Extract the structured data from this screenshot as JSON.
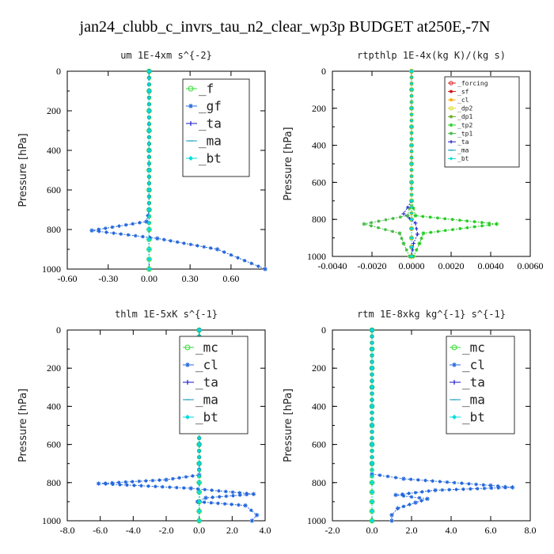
{
  "figure": {
    "title": "jan24_clubb_c_invrs_tau_n2_clear_wp3p  BUDGET at250E,-7N"
  },
  "chart_data": [
    {
      "type": "line",
      "title": "um   1E-4xm  s^{-2}",
      "ylabel": "Pressure [hPa]",
      "xlim": [
        -0.6,
        0.85
      ],
      "ylim": [
        1000,
        0
      ],
      "xticks": [
        -0.6,
        -0.3,
        0.0,
        0.3,
        0.6
      ],
      "xtick_labels": [
        "-0.60",
        "-0.30",
        "0.00",
        "0.30",
        "0.60"
      ],
      "yticks": [
        0,
        200,
        400,
        600,
        800,
        1000
      ],
      "legend": {
        "position": "top-right",
        "size": "large"
      },
      "series": [
        {
          "name": "_f",
          "color": "#33dd33",
          "marker": "circle",
          "x": [
            0,
            0,
            0,
            0,
            0,
            0,
            0,
            0,
            0,
            0,
            0,
            0,
            0
          ],
          "y": [
            0,
            100,
            200,
            300,
            400,
            500,
            600,
            700,
            800,
            850,
            900,
            950,
            1000
          ]
        },
        {
          "name": "_gf",
          "color": "#2266dd",
          "marker": "star",
          "x": [
            0,
            0,
            0,
            0,
            0,
            0,
            0,
            0,
            -0.02,
            -0.42,
            0.06,
            0.5,
            0.85
          ],
          "y": [
            0,
            100,
            200,
            300,
            400,
            500,
            600,
            700,
            760,
            805,
            845,
            900,
            1000
          ]
        },
        {
          "name": "_ta",
          "color": "#1111cc",
          "marker": "plus",
          "x": [
            0,
            0,
            0,
            0,
            0,
            0,
            0,
            0,
            0,
            0,
            0,
            0,
            0
          ],
          "y": [
            0,
            100,
            200,
            300,
            400,
            500,
            600,
            700,
            800,
            850,
            900,
            950,
            1000
          ]
        },
        {
          "name": "_ma",
          "color": "#1199bb",
          "marker": "dash",
          "x": [
            0,
            0,
            0,
            0,
            0,
            0,
            0,
            0,
            0,
            0,
            0,
            0,
            0
          ],
          "y": [
            0,
            100,
            200,
            300,
            400,
            500,
            600,
            700,
            800,
            850,
            900,
            950,
            1000
          ]
        },
        {
          "name": "_bt",
          "color": "#00dddd",
          "marker": "diamond",
          "x": [
            0,
            0,
            0,
            0,
            0,
            0,
            0,
            0,
            0,
            0,
            0,
            0,
            0
          ],
          "y": [
            0,
            100,
            200,
            300,
            400,
            500,
            600,
            700,
            800,
            850,
            900,
            950,
            1000
          ]
        }
      ]
    },
    {
      "type": "line",
      "title": "rtpthlp   1E-4x(kg K)/(kg s)",
      "ylabel": "Pressure [hPa]",
      "xlim": [
        -0.004,
        0.006
      ],
      "ylim": [
        1000,
        0
      ],
      "xticks": [
        -0.004,
        -0.002,
        0.0,
        0.002,
        0.004,
        0.006
      ],
      "xtick_labels": [
        "-0.0040",
        "-0.0020",
        "0.0000",
        "0.0020",
        "0.0040",
        "0.0060"
      ],
      "yticks": [
        0,
        200,
        400,
        600,
        800,
        1000
      ],
      "legend": {
        "position": "top-right",
        "size": "small"
      },
      "series": [
        {
          "name": "_forcing",
          "color": "#dd2222",
          "marker": "circle",
          "x": [
            0,
            0,
            0,
            0,
            0,
            0,
            0,
            0,
            0,
            0,
            0,
            0,
            0
          ],
          "y": [
            0,
            100,
            200,
            300,
            400,
            500,
            600,
            700,
            800,
            850,
            900,
            950,
            1000
          ]
        },
        {
          "name": "_sf",
          "color": "#cc1111",
          "marker": "star",
          "x": [
            0,
            0,
            0,
            0,
            0,
            0,
            0,
            0,
            0,
            0,
            0,
            0,
            0
          ],
          "y": [
            0,
            100,
            200,
            300,
            400,
            500,
            600,
            700,
            800,
            850,
            900,
            950,
            1000
          ]
        },
        {
          "name": "_cl",
          "color": "#ffaa00",
          "marker": "star",
          "x": [
            0,
            0,
            0,
            0,
            0,
            0,
            0,
            0,
            0,
            0,
            0,
            0,
            0
          ],
          "y": [
            0,
            100,
            200,
            300,
            400,
            500,
            600,
            700,
            800,
            850,
            900,
            950,
            1000
          ]
        },
        {
          "name": "_dp2",
          "color": "#dddd22",
          "marker": "circle",
          "x": [
            0,
            0,
            0,
            0,
            0,
            0,
            0,
            0,
            0,
            0,
            0,
            0,
            0
          ],
          "y": [
            0,
            100,
            200,
            300,
            400,
            500,
            600,
            700,
            800,
            850,
            900,
            950,
            1000
          ]
        },
        {
          "name": "_dp1",
          "color": "#66aa22",
          "marker": "star",
          "x": [
            0,
            0,
            0,
            0,
            0,
            0,
            0,
            0,
            0,
            0,
            0,
            0,
            0
          ],
          "y": [
            0,
            100,
            200,
            300,
            400,
            500,
            600,
            700,
            800,
            850,
            900,
            950,
            1000
          ]
        },
        {
          "name": "_tp2",
          "color": "#22cc22",
          "marker": "star",
          "x": [
            0,
            0,
            0,
            0,
            0,
            0,
            0,
            0,
            0.0002,
            0.0043,
            0.0006,
            0.0004,
            0.0001
          ],
          "y": [
            0,
            100,
            200,
            300,
            400,
            500,
            600,
            700,
            780,
            825,
            875,
            930,
            1000
          ]
        },
        {
          "name": "_tp1",
          "color": "#44bb44",
          "marker": "star",
          "x": [
            0,
            0,
            0,
            0,
            0,
            0,
            0,
            0,
            -0.0002,
            -0.0024,
            -0.0006,
            -0.0004,
            -0.0001
          ],
          "y": [
            0,
            100,
            200,
            300,
            400,
            500,
            600,
            700,
            780,
            825,
            875,
            930,
            1000
          ]
        },
        {
          "name": "_ta",
          "color": "#2222cc",
          "marker": "plus",
          "x": [
            0,
            0,
            0,
            0,
            0,
            0,
            0,
            0,
            -0.0004,
            0.0002,
            0.0003,
            0.0001,
            0
          ],
          "y": [
            0,
            100,
            200,
            300,
            400,
            500,
            600,
            700,
            770,
            820,
            880,
            930,
            1000
          ]
        },
        {
          "name": "_ma",
          "color": "#1199bb",
          "marker": "dash",
          "x": [
            0,
            0,
            0,
            0,
            0,
            0,
            0,
            0,
            0,
            0,
            0,
            0,
            0
          ],
          "y": [
            0,
            100,
            200,
            300,
            400,
            500,
            600,
            700,
            800,
            850,
            900,
            950,
            1000
          ]
        },
        {
          "name": "_bt",
          "color": "#00dddd",
          "marker": "diamond",
          "x": [
            0,
            0,
            0,
            0,
            0,
            0,
            0,
            0,
            0,
            0,
            0,
            0,
            0
          ],
          "y": [
            0,
            100,
            200,
            300,
            400,
            500,
            600,
            700,
            800,
            850,
            900,
            950,
            1000
          ]
        }
      ]
    },
    {
      "type": "line",
      "title": "thlm   1E-5xK  s^{-1}",
      "ylabel": "Pressure [hPa]",
      "xlim": [
        -8,
        4
      ],
      "ylim": [
        1000,
        0
      ],
      "xticks": [
        -8,
        -6,
        -4,
        -2,
        0,
        2,
        4
      ],
      "xtick_labels": [
        "-8.0",
        "-6.0",
        "-4.0",
        "-2.0",
        "0.0",
        "2.0",
        "4.0"
      ],
      "yticks": [
        0,
        200,
        400,
        600,
        800,
        1000
      ],
      "legend": {
        "position": "top-right",
        "size": "large"
      },
      "series": [
        {
          "name": "_mc",
          "color": "#33dd33",
          "marker": "circle",
          "x": [
            0,
            0,
            0,
            0,
            0,
            0,
            0,
            0,
            0,
            0,
            0,
            0,
            0
          ],
          "y": [
            0,
            100,
            200,
            300,
            400,
            500,
            600,
            700,
            800,
            850,
            900,
            950,
            1000
          ]
        },
        {
          "name": "_cl",
          "color": "#2266dd",
          "marker": "star",
          "x": [
            0,
            0,
            0,
            0,
            0,
            0,
            0,
            0,
            0,
            -2,
            -6.1,
            -0.5,
            3.3,
            0.4,
            -0.1,
            2.8,
            3.5,
            3.2
          ],
          "y": [
            0,
            100,
            200,
            300,
            400,
            500,
            600,
            700,
            760,
            785,
            805,
            830,
            860,
            880,
            900,
            920,
            970,
            1000
          ]
        },
        {
          "name": "_ta",
          "color": "#1111cc",
          "marker": "plus",
          "x": [
            0,
            0,
            0,
            0,
            0,
            0,
            0,
            0,
            0,
            0,
            0,
            0,
            0
          ],
          "y": [
            0,
            100,
            200,
            300,
            400,
            500,
            600,
            700,
            800,
            850,
            900,
            950,
            1000
          ]
        },
        {
          "name": "_ma",
          "color": "#1199bb",
          "marker": "dash",
          "x": [
            0,
            0,
            0,
            0,
            0,
            0,
            0,
            0,
            0,
            0,
            0,
            0,
            0
          ],
          "y": [
            0,
            100,
            200,
            300,
            400,
            500,
            600,
            700,
            800,
            850,
            900,
            950,
            1000
          ]
        },
        {
          "name": "_bt",
          "color": "#00dddd",
          "marker": "diamond",
          "x": [
            0,
            0,
            0,
            0,
            0,
            0,
            0,
            0,
            0,
            0,
            0,
            0,
            0
          ],
          "y": [
            0,
            100,
            200,
            300,
            400,
            500,
            600,
            700,
            800,
            850,
            900,
            950,
            1000
          ]
        }
      ]
    },
    {
      "type": "line",
      "title": "rtm   1E-8xkg kg^{-1} s^{-1}",
      "ylabel": "Pressure [hPa]",
      "xlim": [
        -2,
        8
      ],
      "ylim": [
        1000,
        0
      ],
      "xticks": [
        -2,
        0,
        2,
        4,
        6,
        8
      ],
      "xtick_labels": [
        "-2.0",
        "0.0",
        "2.0",
        "4.0",
        "6.0",
        "8.0"
      ],
      "yticks": [
        0,
        200,
        400,
        600,
        800,
        1000
      ],
      "legend": {
        "position": "top-right",
        "size": "large"
      },
      "series": [
        {
          "name": "_mc",
          "color": "#33dd33",
          "marker": "circle",
          "x": [
            0,
            0,
            0,
            0,
            0,
            0,
            0,
            0,
            0,
            0,
            0,
            0,
            0
          ],
          "y": [
            0,
            100,
            200,
            300,
            400,
            500,
            600,
            700,
            800,
            850,
            900,
            950,
            1000
          ]
        },
        {
          "name": "_cl",
          "color": "#2266dd",
          "marker": "star",
          "x": [
            0,
            0,
            0,
            0,
            0,
            0,
            0,
            0,
            0,
            1.6,
            6,
            7.1,
            3.2,
            1.2,
            2.8,
            2.2,
            1.3,
            1.0,
            1.0
          ],
          "y": [
            0,
            100,
            200,
            300,
            400,
            500,
            600,
            700,
            755,
            780,
            815,
            825,
            840,
            865,
            885,
            905,
            935,
            970,
            1000
          ]
        },
        {
          "name": "_ta",
          "color": "#1111cc",
          "marker": "plus",
          "x": [
            0,
            0,
            0,
            0,
            0,
            0,
            0,
            0,
            0,
            0,
            0,
            0,
            0
          ],
          "y": [
            0,
            100,
            200,
            300,
            400,
            500,
            600,
            700,
            800,
            850,
            900,
            950,
            1000
          ]
        },
        {
          "name": "_ma",
          "color": "#1199bb",
          "marker": "dash",
          "x": [
            0,
            0,
            0,
            0,
            0,
            0,
            0,
            0,
            0,
            0,
            0,
            0,
            0
          ],
          "y": [
            0,
            100,
            200,
            300,
            400,
            500,
            600,
            700,
            800,
            850,
            900,
            950,
            1000
          ]
        },
        {
          "name": "_bt",
          "color": "#00dddd",
          "marker": "diamond",
          "x": [
            0,
            0,
            0,
            0,
            0,
            0,
            0,
            0,
            0,
            0,
            0,
            0,
            0
          ],
          "y": [
            0,
            100,
            200,
            300,
            400,
            500,
            600,
            700,
            800,
            850,
            900,
            950,
            1000
          ]
        }
      ]
    }
  ]
}
